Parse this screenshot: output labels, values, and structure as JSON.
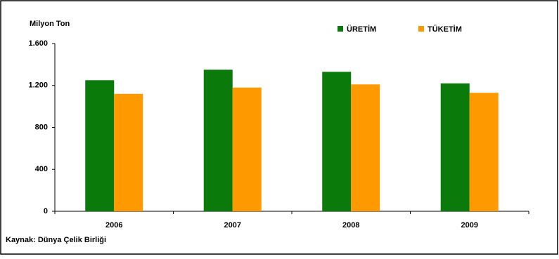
{
  "chart_data": {
    "type": "bar",
    "y_label": "Milyon Ton",
    "source": "Kaynak: Dünya Çelik Birliği",
    "categories": [
      "2006",
      "2007",
      "2008",
      "2009"
    ],
    "series": [
      {
        "name": "ÜRETİM",
        "color": "#0a7a0a",
        "values": [
          1250,
          1350,
          1330,
          1220
        ]
      },
      {
        "name": "TÜKETİM",
        "color": "#ff9900",
        "values": [
          1120,
          1180,
          1210,
          1130
        ]
      }
    ],
    "ylim": [
      0,
      1600
    ],
    "yticks": [
      0,
      400,
      800,
      {
        "value": 1200,
        "label": "1.200"
      },
      {
        "value": 1600,
        "label": "1.600"
      }
    ],
    "grid": false,
    "legend": "top-right"
  }
}
